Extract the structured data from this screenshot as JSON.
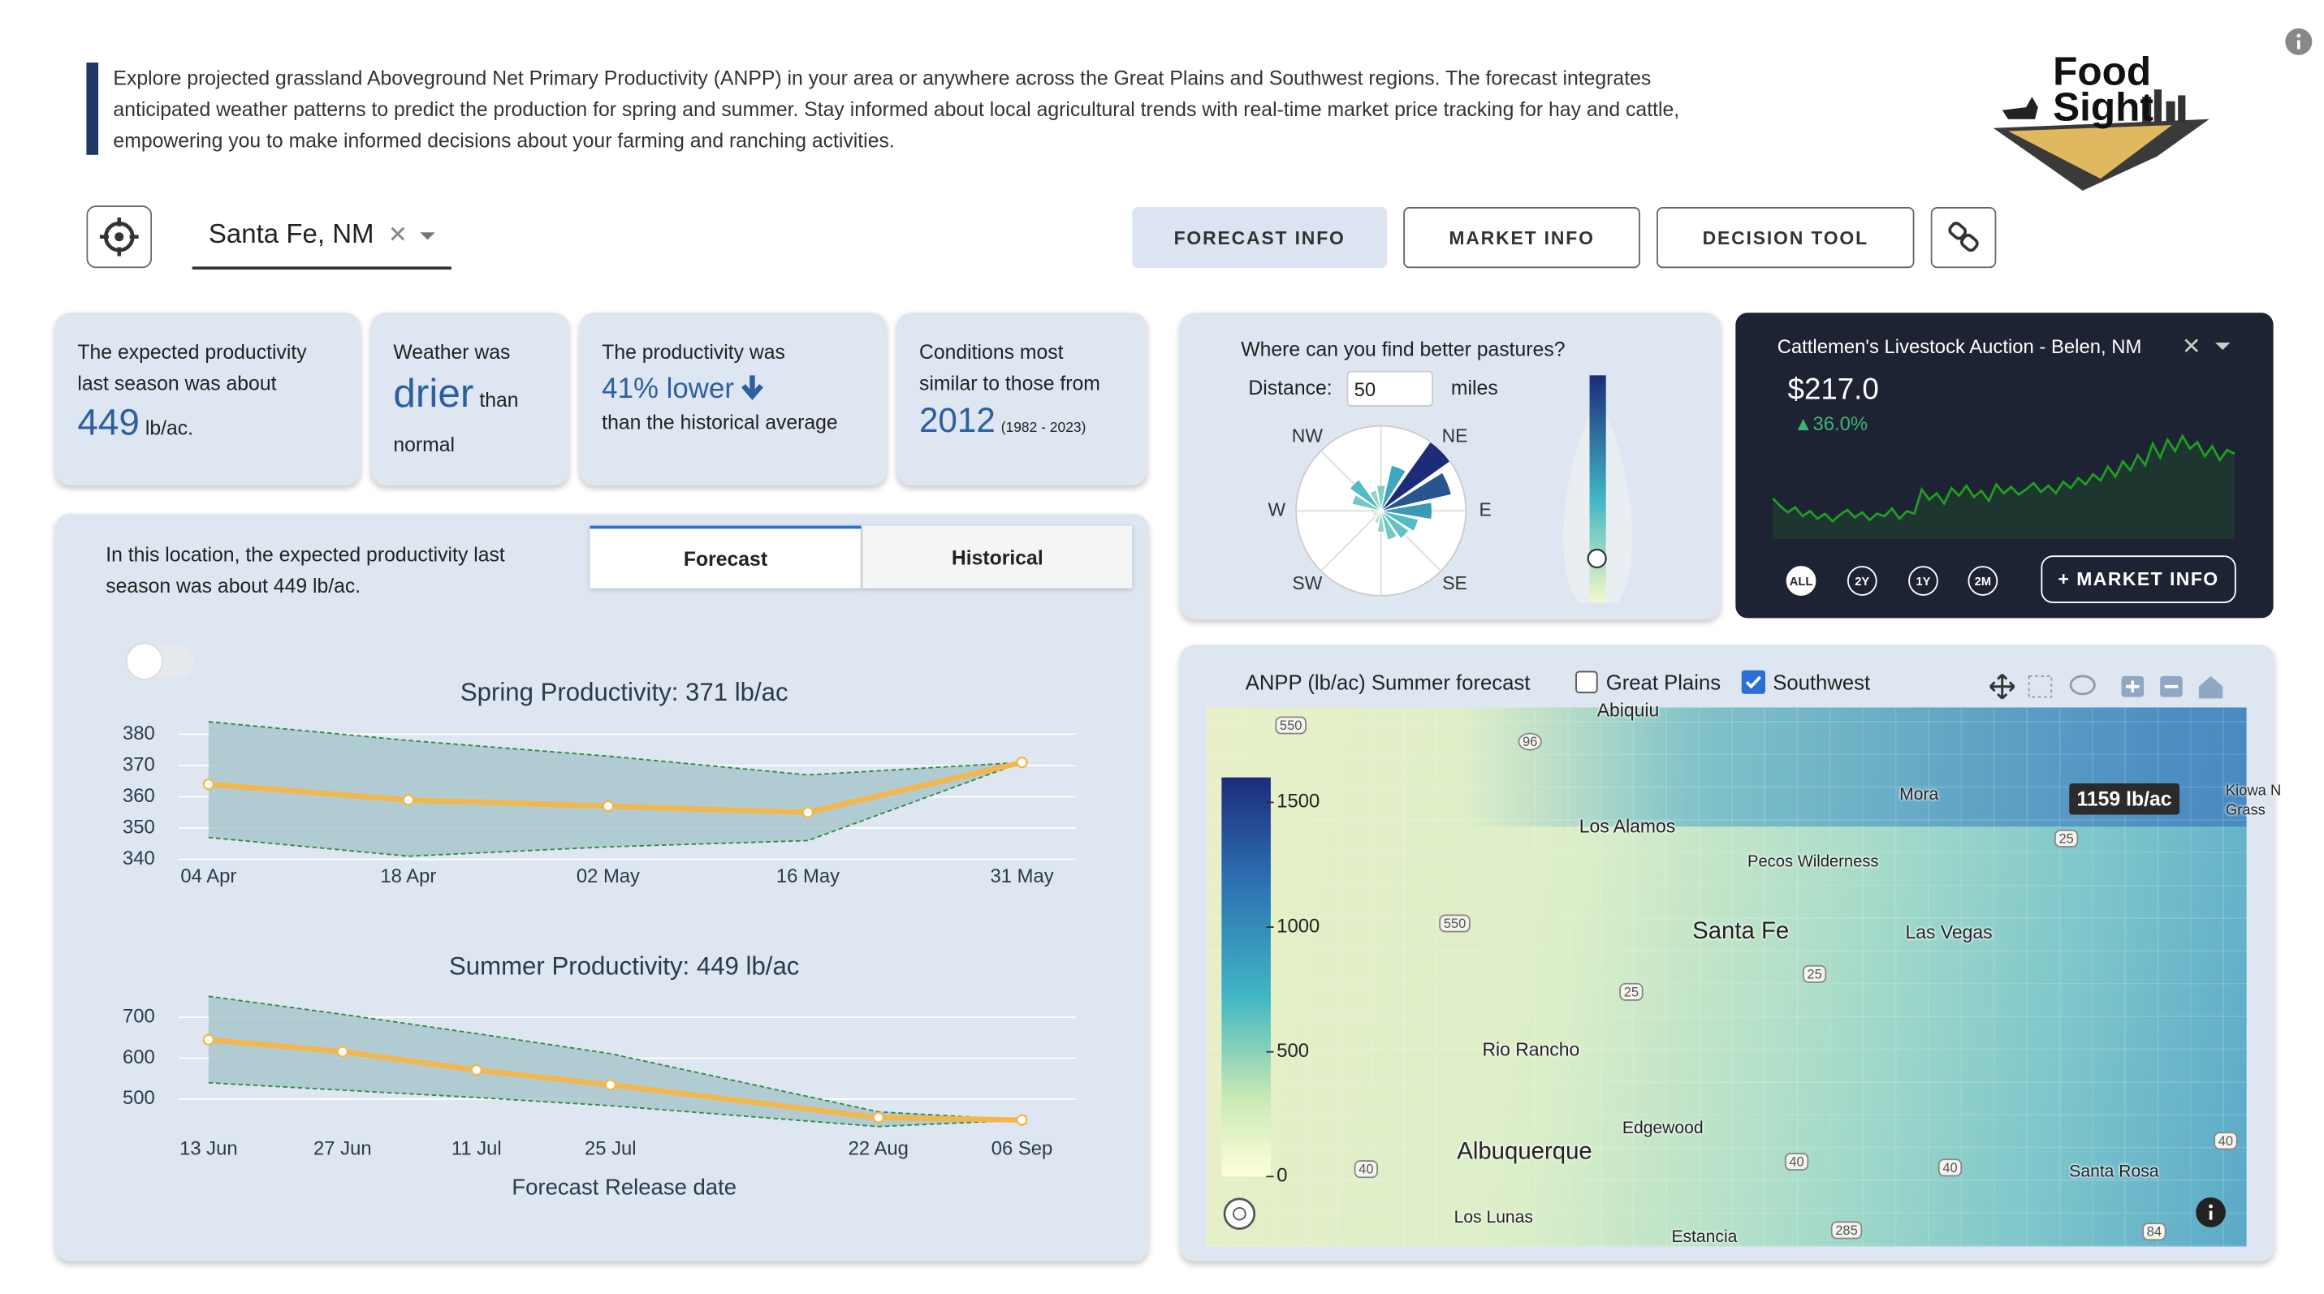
{
  "header": {
    "intro": "Explore projected grassland Aboveground Net Primary Productivity (ANPP) in your area or anywhere across the Great Plains and Southwest regions. The forecast integrates anticipated weather patterns to predict the production for spring and summer. Stay informed about local agricultural trends with real-time market price tracking for hay and cattle, empowering you to make informed decisions about your farming and ranching activities.",
    "logo": [
      "Food",
      "Sight"
    ]
  },
  "controls": {
    "location": "Santa Fe, NM",
    "buttons": [
      "FORECAST INFO",
      "MARKET INFO",
      "DECISION TOOL"
    ]
  },
  "cards": [
    {
      "text": "The expected productivity last season was about",
      "value": "449",
      "unit": "lb/ac."
    },
    {
      "text": "Weather was",
      "value": "drier",
      "unit": "than normal"
    },
    {
      "text": "The productivity was",
      "value": "41% lower",
      "unit": "than the historical average"
    },
    {
      "text": "Conditions most similar to those from",
      "value": "2012",
      "unit": "(1982 - 2023)"
    }
  ],
  "productivity": {
    "text": "In this location, the expected productivity last season was about 449 lb/ac.",
    "tabs": [
      "Forecast",
      "Historical"
    ]
  },
  "pastures": {
    "title": "Where can you find better pastures?",
    "distance_label": "Distance:",
    "distance": "50",
    "unit": "miles"
  },
  "market": {
    "title": "Cattlemen's Livestock Auction - Belen, NM",
    "price": "$217.0",
    "change": "▲36.0%",
    "ranges": [
      "ALL",
      "2Y",
      "1Y",
      "2M"
    ],
    "button": "+ MARKET INFO"
  },
  "map": {
    "title": "ANPP (lb/ac) Summer forecast",
    "layers": [
      "Great Plains",
      "Southwest"
    ],
    "tooltip": "1159 lb/ac",
    "colorbar": {
      "lim": [
        0,
        1600
      ],
      "ticks": [
        0,
        500,
        1000,
        1500
      ]
    },
    "places": [
      "Abiquiu",
      "Los Alamos",
      "Pecos Wilderness",
      "Mora",
      "Santa Fe",
      "Las Vegas",
      "Rio Rancho",
      "Albuquerque",
      "Edgewood",
      "Santa Rosa",
      "Los Lunas",
      "Estancia",
      "Kiowa N",
      "Grass"
    ],
    "shields": [
      "550",
      "96",
      "550",
      "25",
      "25",
      "25",
      "40",
      "40",
      "40",
      "40",
      "285",
      "84"
    ]
  },
  "chart_data": [
    {
      "type": "line",
      "title": "Spring Productivity: 371 lb/ac",
      "categories": [
        "04 Apr",
        "18 Apr",
        "02 May",
        "16 May",
        "31 May"
      ],
      "series": [
        {
          "color": "#f2b64a",
          "values": [
            364,
            359,
            357,
            355,
            371
          ]
        }
      ],
      "band": {
        "upper": [
          384,
          378,
          373,
          367,
          371
        ],
        "lower": [
          347,
          341,
          344,
          346,
          371
        ],
        "color": "#a9c6cc",
        "edge_color": "#2e8b3e"
      },
      "ylim": [
        338,
        386
      ],
      "yticks": [
        340,
        350,
        360,
        370,
        380
      ],
      "grid": true
    },
    {
      "type": "line",
      "title": "Summer Productivity: 449 lb/ac",
      "x_label": "Forecast Release date",
      "categories": [
        "13 Jun",
        "27 Jun",
        "11 Jul",
        "25 Jul",
        "22 Aug",
        "06 Sep"
      ],
      "series": [
        {
          "color": "#f2b64a",
          "values": [
            645,
            616,
            571,
            535,
            455,
            449
          ]
        }
      ],
      "band": {
        "upper": [
          751,
          707,
          660,
          611,
          469,
          449
        ],
        "lower": [
          540,
          522,
          504,
          484,
          433,
          449
        ],
        "color": "#a9c6cc",
        "edge_color": "#2e8b3e"
      },
      "ylim": [
        420,
        770
      ],
      "yticks": [
        500,
        600,
        700
      ],
      "grid": true
    },
    {
      "type": "windrose",
      "values": [
        30,
        55,
        100,
        85,
        60,
        45,
        40,
        35,
        25,
        15,
        10,
        10,
        12,
        35,
        45,
        25
      ],
      "rlim": [
        0,
        100
      ],
      "colorscale": [
        "#e8f2c0",
        "#41b6c4",
        "#1d2c7a"
      ],
      "thetaticks": [
        {
          "value": 45,
          "label": "NE"
        },
        {
          "value": 90,
          "label": "E"
        },
        {
          "value": 135,
          "label": "SE"
        },
        {
          "value": 225,
          "label": "SW"
        },
        {
          "value": 270,
          "label": "W"
        },
        {
          "value": 315,
          "label": "NW"
        }
      ]
    },
    {
      "type": "line",
      "color": "#1fa01f",
      "area": true,
      "ylim": [
        150,
        240
      ],
      "values": [
        182,
        176,
        171,
        175,
        168,
        172,
        166,
        170,
        164,
        169,
        173,
        167,
        171,
        165,
        170,
        168,
        174,
        166,
        172,
        170,
        189,
        181,
        186,
        178,
        190,
        184,
        192,
        183,
        188,
        180,
        193,
        186,
        191,
        185,
        189,
        194,
        187,
        192,
        186,
        195,
        190,
        198,
        193,
        201,
        196,
        207,
        199,
        211,
        204,
        216,
        208,
        225,
        214,
        228,
        219,
        231,
        221,
        226,
        215,
        223,
        212,
        220,
        217
      ]
    }
  ]
}
